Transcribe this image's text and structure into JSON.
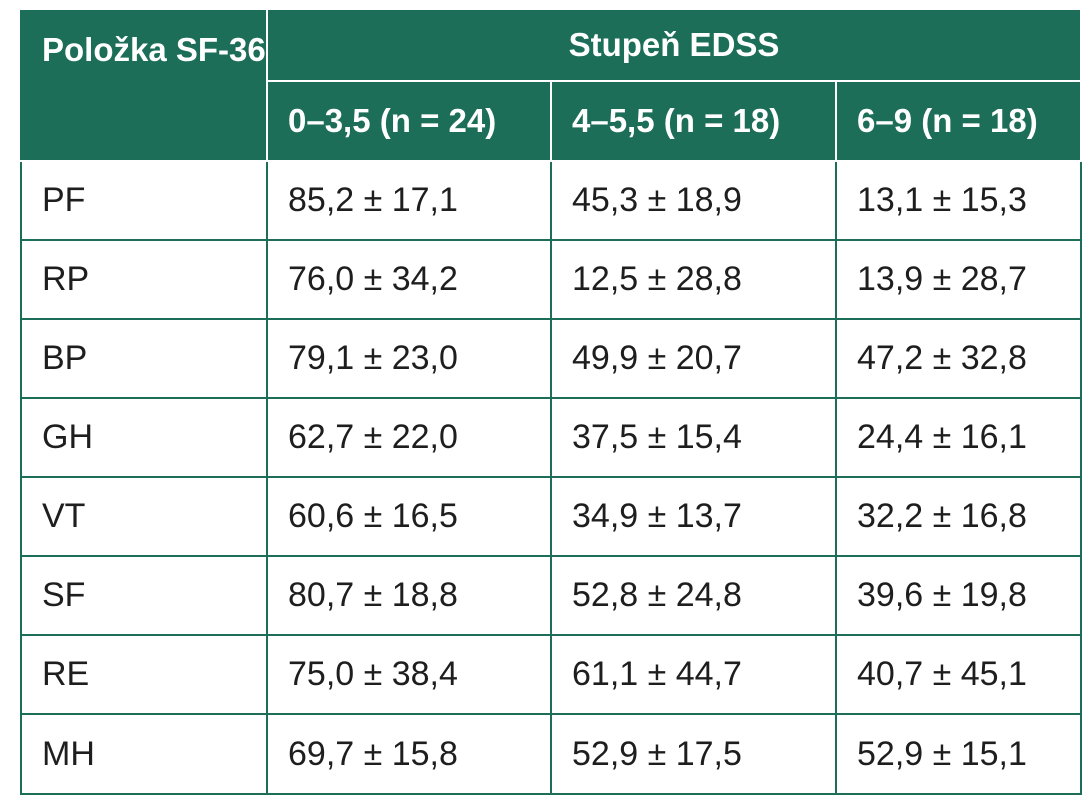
{
  "table": {
    "corner_header": "Položka SF-36",
    "group_header": "Stupeň EDSS",
    "column_headers": [
      "0–3,5 (n = 24)",
      "4–5,5 (n = 18)",
      "6–9 (n = 18)"
    ],
    "rows": [
      {
        "item": "PF",
        "values": [
          "85,2 ± 17,1",
          "45,3 ± 18,9",
          "13,1 ± 15,3"
        ]
      },
      {
        "item": "RP",
        "values": [
          "76,0 ± 34,2",
          "12,5 ± 28,8",
          "13,9 ± 28,7"
        ]
      },
      {
        "item": "BP",
        "values": [
          "79,1 ± 23,0",
          "49,9 ± 20,7",
          "47,2 ± 32,8"
        ]
      },
      {
        "item": "GH",
        "values": [
          "62,7 ± 22,0",
          "37,5 ± 15,4",
          "24,4 ± 16,1"
        ]
      },
      {
        "item": "VT",
        "values": [
          "60,6 ± 16,5",
          "34,9 ± 13,7",
          "32,2 ± 16,8"
        ]
      },
      {
        "item": "SF",
        "values": [
          "80,7 ± 18,8",
          "52,8 ± 24,8",
          "39,6 ± 19,8"
        ]
      },
      {
        "item": "RE",
        "values": [
          "75,0 ± 38,4",
          "61,1 ± 44,7",
          "40,7 ± 45,1"
        ]
      },
      {
        "item": "MH",
        "values": [
          "69,7 ± 15,8",
          "52,9 ± 17,5",
          "52,9 ± 15,1"
        ]
      }
    ]
  },
  "colors": {
    "header_background": "#1c6e58",
    "header_text": "#ffffff",
    "border": "#1c6e58",
    "body_text": "#1e1e1e"
  }
}
